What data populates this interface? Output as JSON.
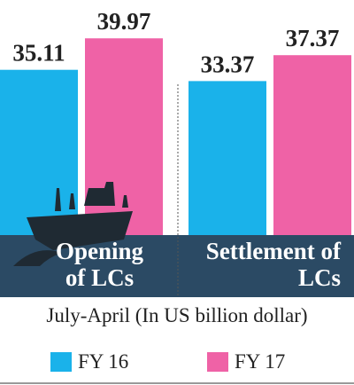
{
  "chart_data": {
    "type": "bar",
    "subtitle": "July-April (In US billion dollar)",
    "categories": [
      "Opening of LCs",
      "Settlement of LCs"
    ],
    "series": [
      {
        "name": "FY 16",
        "color": "#1ab2ea",
        "values": [
          35.11,
          33.37
        ]
      },
      {
        "name": "FY 17",
        "color": "#ef62a6",
        "values": [
          39.97,
          37.37
        ]
      }
    ]
  }
}
